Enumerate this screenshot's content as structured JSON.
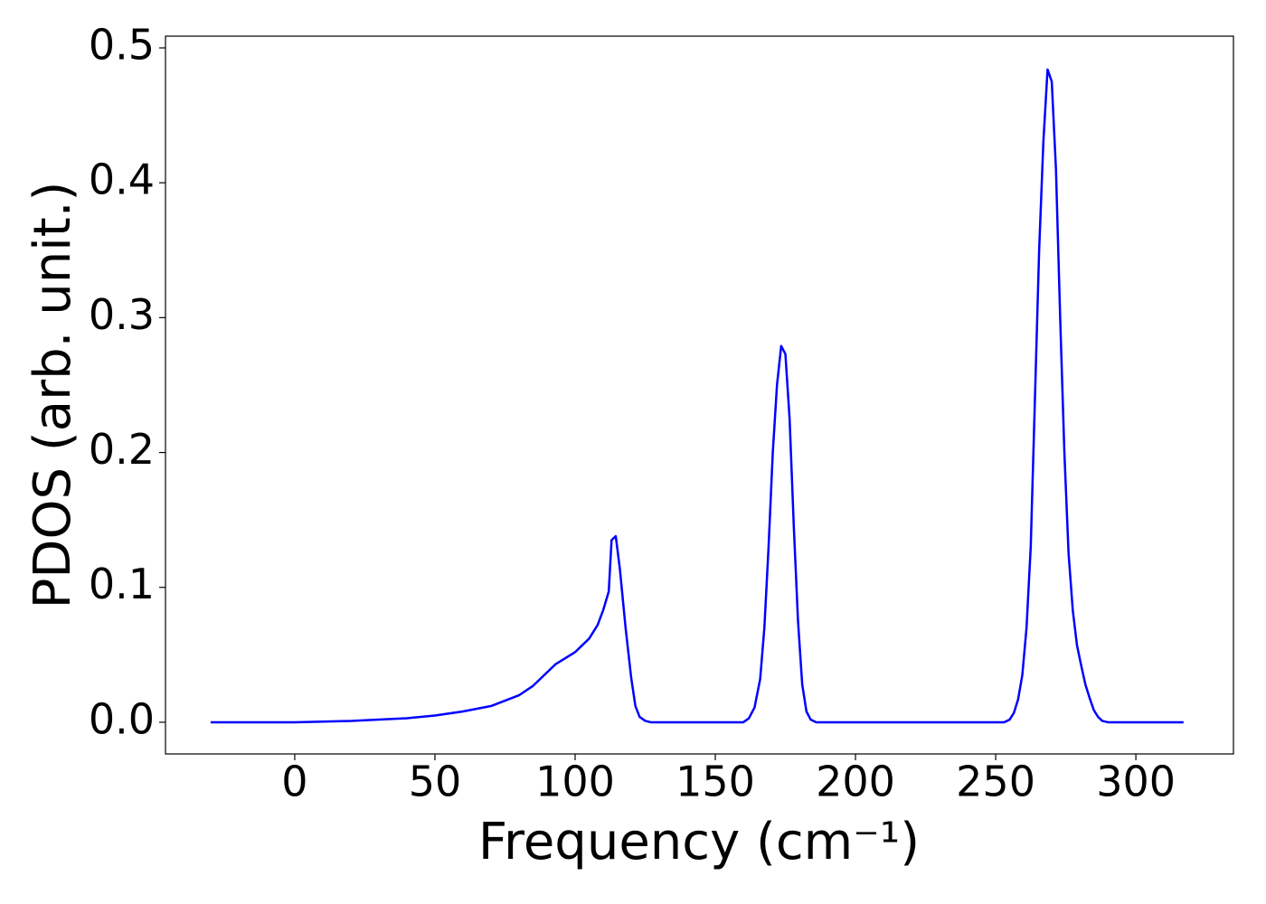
{
  "chart_data": {
    "type": "line",
    "x_label": "Frequency (cm⁻¹)",
    "y_label": "PDOS (arb. unit.)",
    "x": [
      -30,
      0,
      10,
      20,
      30,
      40,
      50,
      60,
      70,
      80,
      85,
      90,
      93,
      100,
      105,
      108,
      110,
      112,
      113,
      114.5,
      116,
      118,
      120,
      121.5,
      123,
      125,
      127,
      160,
      162,
      164,
      166,
      167.5,
      169,
      170.5,
      172,
      173.5,
      175,
      176.5,
      178,
      179.5,
      181,
      182.5,
      184,
      186,
      253,
      255,
      256.5,
      258,
      259.5,
      261,
      262.5,
      264,
      265.5,
      267,
      268.5,
      270,
      271.5,
      273,
      274.5,
      276,
      277.5,
      279,
      280.5,
      282,
      283.5,
      285,
      286.5,
      288,
      290,
      317
    ],
    "series": [
      {
        "color": "#0000ff",
        "values": [
          0,
          0,
          0.0005,
          0.001,
          0.002,
          0.003,
          0.005,
          0.008,
          0.012,
          0.02,
          0.027,
          0.037,
          0.043,
          0.052,
          0.062,
          0.072,
          0.083,
          0.097,
          0.135,
          0.138,
          0.113,
          0.07,
          0.033,
          0.012,
          0.004,
          0.001,
          0,
          0,
          0.003,
          0.011,
          0.032,
          0.07,
          0.13,
          0.2,
          0.25,
          0.279,
          0.273,
          0.225,
          0.145,
          0.075,
          0.028,
          0.008,
          0.002,
          0,
          0,
          0.002,
          0.007,
          0.017,
          0.035,
          0.07,
          0.13,
          0.24,
          0.35,
          0.43,
          0.484,
          0.475,
          0.41,
          0.3,
          0.2,
          0.125,
          0.083,
          0.057,
          0.042,
          0.028,
          0.018,
          0.009,
          0.004,
          0.001,
          0,
          0
        ]
      }
    ],
    "xlim": [
      -46.1,
      334.8
    ],
    "ylim": [
      -0.0235,
      0.5087
    ],
    "xticks": [
      0,
      50,
      100,
      150,
      200,
      250,
      300
    ],
    "yticks": [
      {
        "value": 0,
        "label": "0.0"
      },
      0.1,
      0.2,
      0.3,
      0.4,
      0.5
    ]
  }
}
